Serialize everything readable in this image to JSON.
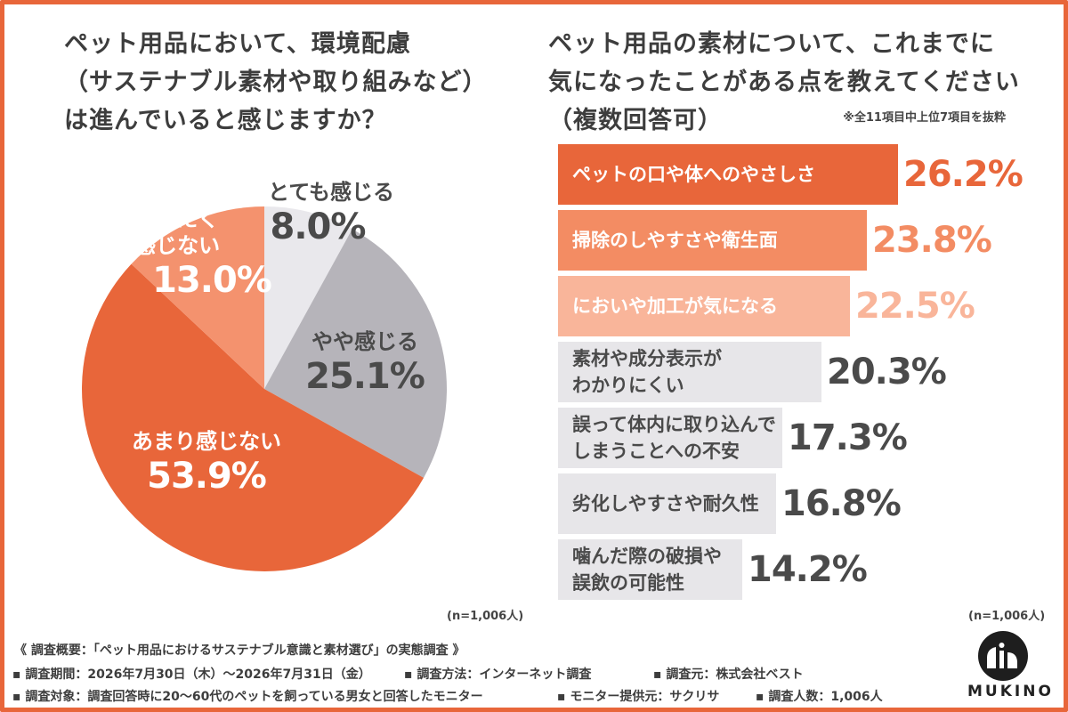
{
  "left": {
    "title_lines": [
      "ペット用品において、環境配慮",
      "（サステナブル素材や取り組みなど）",
      "は進んでいると感じますか？"
    ],
    "n_label": "(n=1,006人)"
  },
  "right": {
    "title_lines": [
      "ペット用品の素材について、これまでに",
      "気になったことがある点を教えてください",
      "（複数回答可）"
    ],
    "note": "※全11項目中上位7項目を抜粋",
    "n_label": "(n=1,006人)"
  },
  "chart_data": [
    {
      "type": "pie",
      "start": "12 o'clock, clockwise",
      "slices": [
        {
          "label": "とても感じる",
          "value": 8.0,
          "value_text": "8.0%",
          "color": "#e9e8ec",
          "text_color": "#4a4a4a"
        },
        {
          "label": "やや感じる",
          "value": 25.1,
          "value_text": "25.1%",
          "color": "#b6b4ba",
          "text_color": "#4a4a4a"
        },
        {
          "label": "あまり感じない",
          "value": 53.9,
          "value_text": "53.9%",
          "color": "#e8663a",
          "text_color": "#ffffff"
        },
        {
          "label_lines": [
            "まったく",
            "感じない"
          ],
          "value": 13.0,
          "value_text": "13.0%",
          "color": "#f4926e",
          "text_color": "#ffffff"
        }
      ]
    },
    {
      "type": "bar",
      "orientation": "horizontal",
      "xlim": [
        0,
        26.2
      ],
      "bars": [
        {
          "label_lines": [
            "ペットの口や体へのやさしさ"
          ],
          "value": 26.2,
          "value_text": "26.2%",
          "color": "#e8663a",
          "label_color": "#ffffff",
          "value_color": "#e8663a"
        },
        {
          "label_lines": [
            "掃除のしやすさや衛生面"
          ],
          "value": 23.8,
          "value_text": "23.8%",
          "color": "#f38c63",
          "label_color": "#ffffff",
          "value_color": "#f38c63"
        },
        {
          "label_lines": [
            "においや加工が気になる"
          ],
          "value": 22.5,
          "value_text": "22.5%",
          "color": "#f9b59a",
          "label_color": "#ffffff",
          "value_color": "#f9b59a"
        },
        {
          "label_lines": [
            "素材や成分表示が",
            "わかりにくい"
          ],
          "value": 20.3,
          "value_text": "20.3%",
          "color": "#e7e6e9",
          "label_color": "#4a4a4a",
          "value_color": "#4a4a4a"
        },
        {
          "label_lines": [
            "誤って体内に取り込んで",
            "しまうことへの不安"
          ],
          "value": 17.3,
          "value_text": "17.3%",
          "color": "#e7e6e9",
          "label_color": "#4a4a4a",
          "value_color": "#4a4a4a"
        },
        {
          "label_lines": [
            "劣化しやすさや耐久性"
          ],
          "value": 16.8,
          "value_text": "16.8%",
          "color": "#e7e6e9",
          "label_color": "#4a4a4a",
          "value_color": "#4a4a4a"
        },
        {
          "label_lines": [
            "噛んだ際の破損や",
            "誤飲の可能性"
          ],
          "value": 14.2,
          "value_text": "14.2%",
          "color": "#e7e6e9",
          "label_color": "#4a4a4a",
          "value_color": "#4a4a4a"
        }
      ]
    }
  ],
  "footer": {
    "title": "《 調査概要：「ペット用品におけるサステナブル意識と素材選び」の実態調査 》",
    "row1": [
      "▪ 調査期間：2026年7月30日（木）〜2026年7月31日（金）",
      "▪ 調査方法：インターネット調査",
      "▪ 調査元：株式会社ベスト"
    ],
    "row2": [
      "▪ 調査対象：調査回答時に20〜60代のペットを飼っている男女と回答したモニター",
      "▪ モニター提供元：サクリサ",
      "▪ 調査人数：1,006人"
    ]
  },
  "logo": {
    "word": "MUKINO"
  },
  "colors": {
    "accent": "#e8663a",
    "border": "#e8663a",
    "text": "#3d3d3d"
  }
}
